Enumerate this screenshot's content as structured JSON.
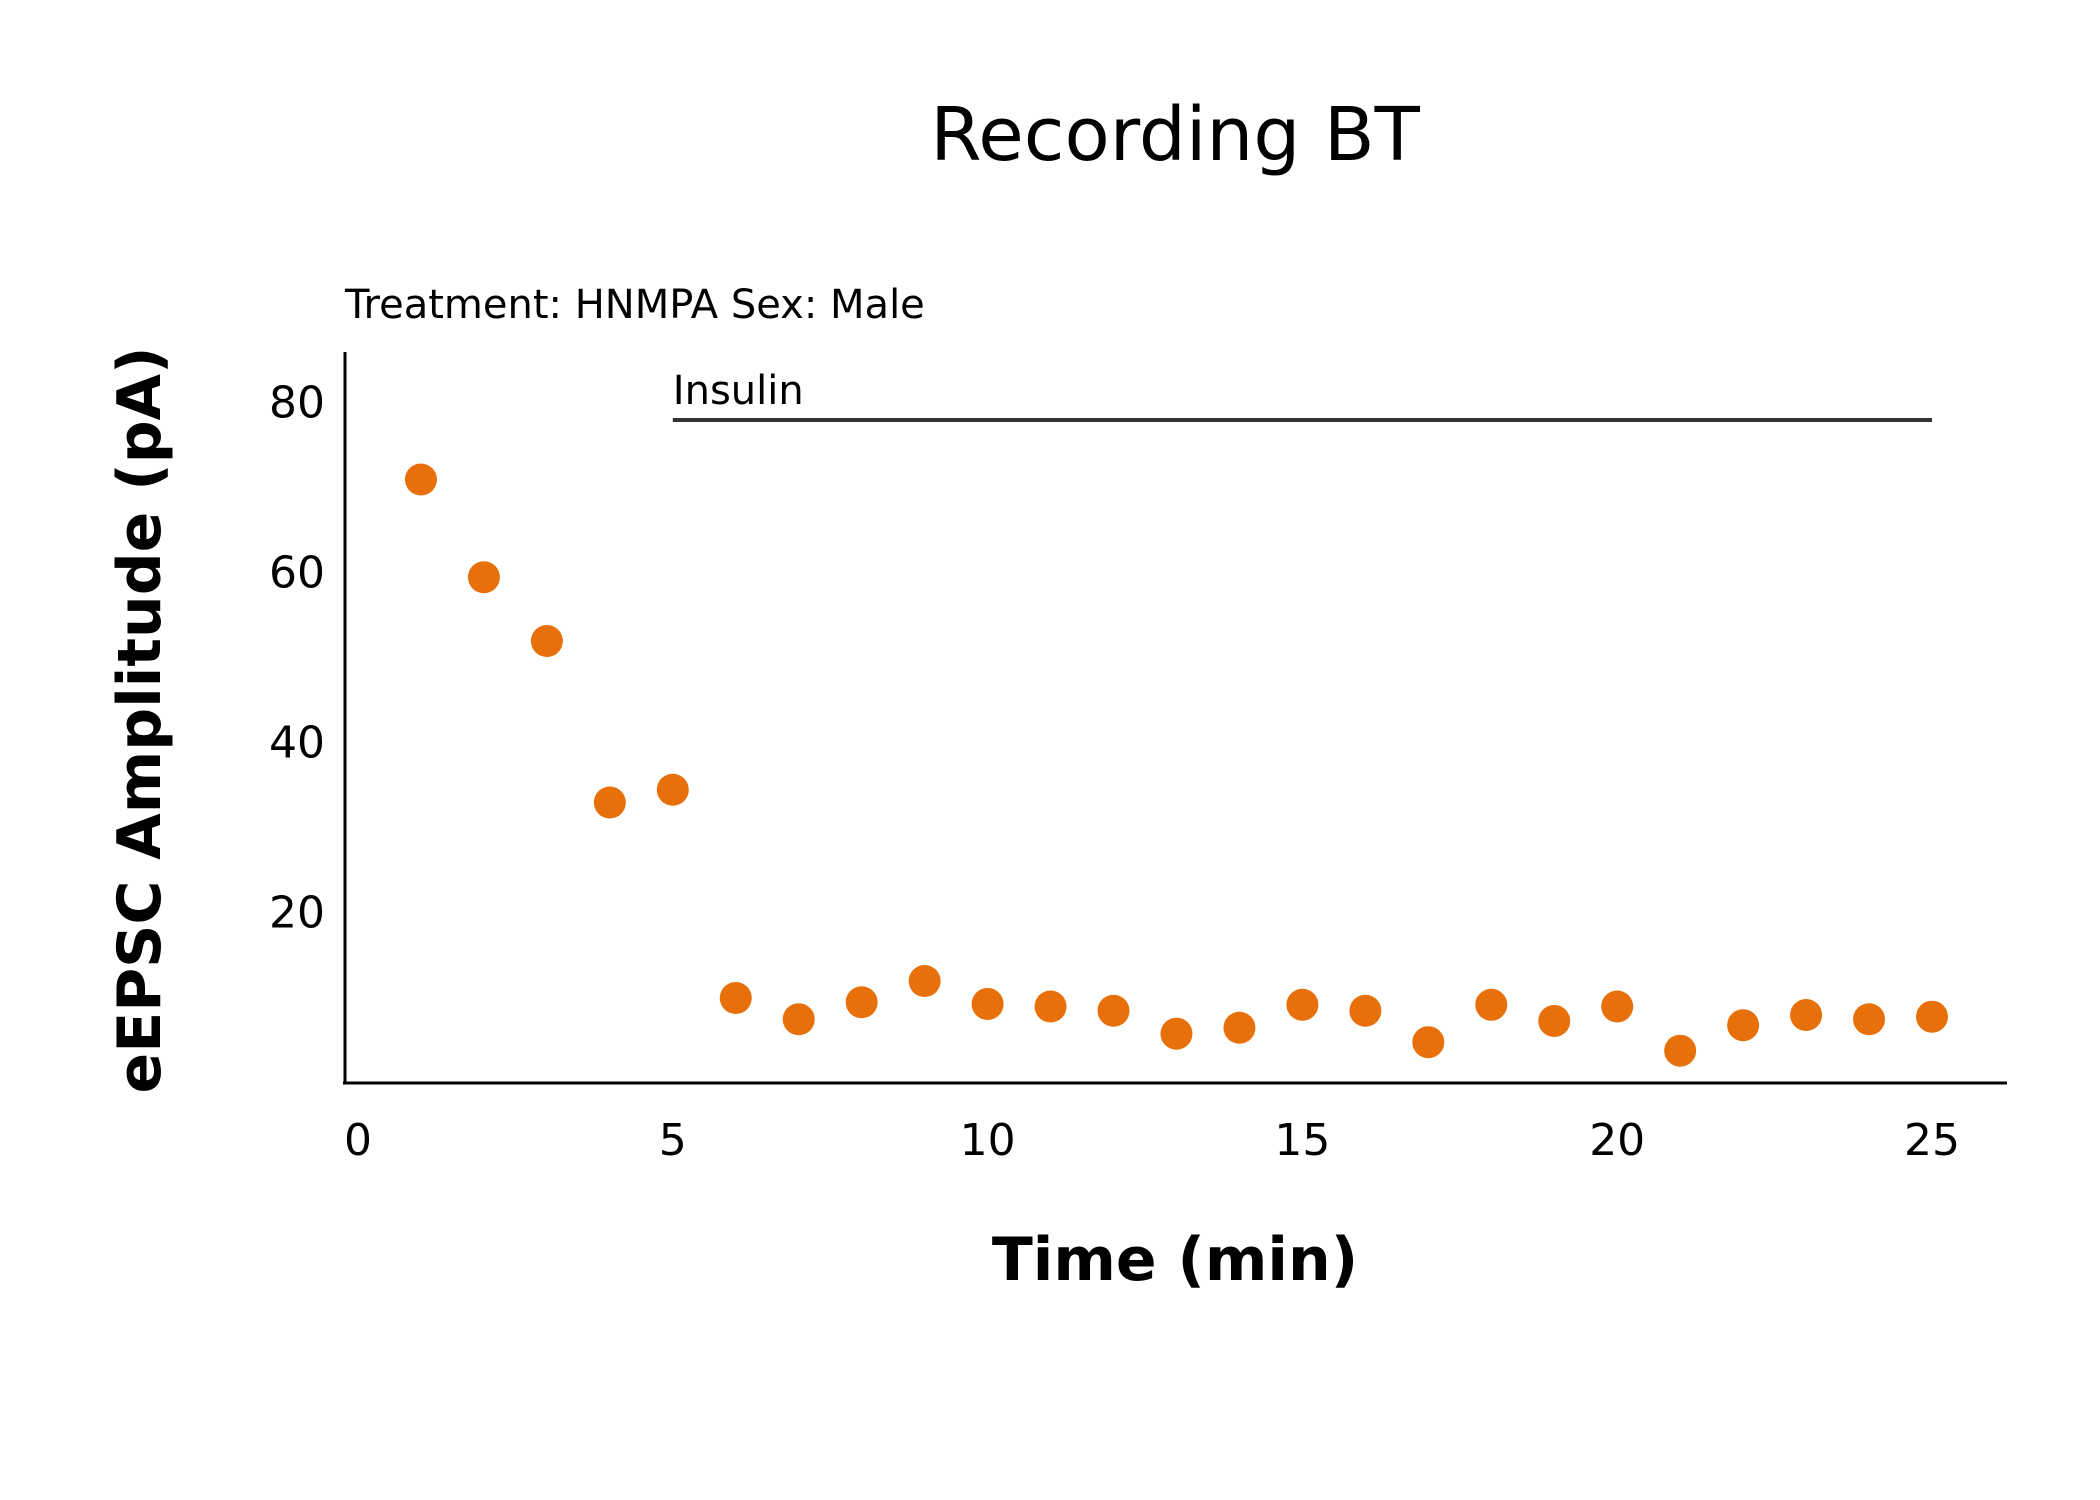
{
  "chart_data": {
    "type": "scatter",
    "title": "Recording BT",
    "subtitle": "Treatment: HNMPA  Sex: Male",
    "xlabel": "Time (min)",
    "ylabel": "eEPSC Amplitude (pA)",
    "xlim": [
      0,
      26
    ],
    "ylim": [
      0,
      86
    ],
    "xticks": [
      0,
      5,
      10,
      15,
      20,
      25
    ],
    "yticks": [
      20,
      40,
      60,
      80
    ],
    "grid": false,
    "legend": "none",
    "point_color": "#E8700A",
    "annotation": {
      "label": "Insulin",
      "x_start": 5,
      "x_end": 25,
      "y": 78
    },
    "series": [
      {
        "x": [
          1,
          2,
          3,
          4,
          5,
          6,
          7,
          8,
          9,
          10,
          11,
          12,
          13,
          14,
          15,
          16,
          17,
          18,
          19,
          20,
          21,
          22,
          23,
          24,
          25
        ],
        "y": [
          71,
          59.5,
          52,
          33,
          34.5,
          10,
          7.5,
          9.5,
          12,
          9.3,
          9,
          8.5,
          5.8,
          6.5,
          9.2,
          8.5,
          4.8,
          9.2,
          7.3,
          9,
          3.8,
          6.8,
          8,
          7.5,
          7.8
        ]
      }
    ]
  }
}
